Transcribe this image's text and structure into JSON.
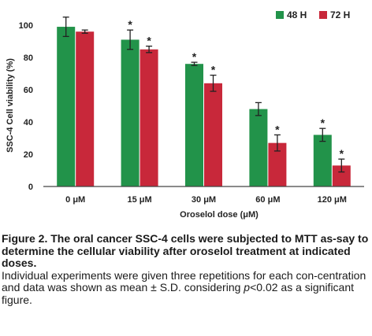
{
  "chart_data": {
    "type": "bar",
    "categories": [
      "0 μM",
      "15 μM",
      "30 μM",
      "60 μM",
      "120 μM"
    ],
    "series": [
      {
        "name": "48 H",
        "color": "#22934a",
        "values": [
          99,
          91,
          76,
          48,
          32
        ],
        "errors": [
          6,
          6,
          1,
          4,
          4
        ],
        "significant": [
          false,
          true,
          true,
          false,
          true
        ]
      },
      {
        "name": "72 H",
        "color": "#c8283a",
        "values": [
          96,
          85,
          64,
          27,
          13
        ],
        "errors": [
          1,
          2,
          5,
          5,
          4
        ],
        "significant": [
          false,
          true,
          true,
          true,
          true
        ]
      }
    ],
    "xlabel": "Oroselol dose (μM)",
    "ylabel": "SSC-4 Cell viability (%)",
    "ylim": [
      0,
      100
    ],
    "yticks": [
      0,
      20,
      40,
      60,
      80,
      100
    ],
    "significance_marker": "*",
    "grid": false,
    "legend_position": "top-right"
  },
  "caption": {
    "title": "Figure 2. The oral cancer SSC-4 cells were subjected to MTT as-say to determine the cellular viability after oroselol treatment at indicated doses.",
    "body_part1": "Individual experiments were given three repetitions for each con-centration and data was shown as mean ± S.D. considering ",
    "p_symbol": "p",
    "body_part2": "<0.02 as a significant figure."
  }
}
